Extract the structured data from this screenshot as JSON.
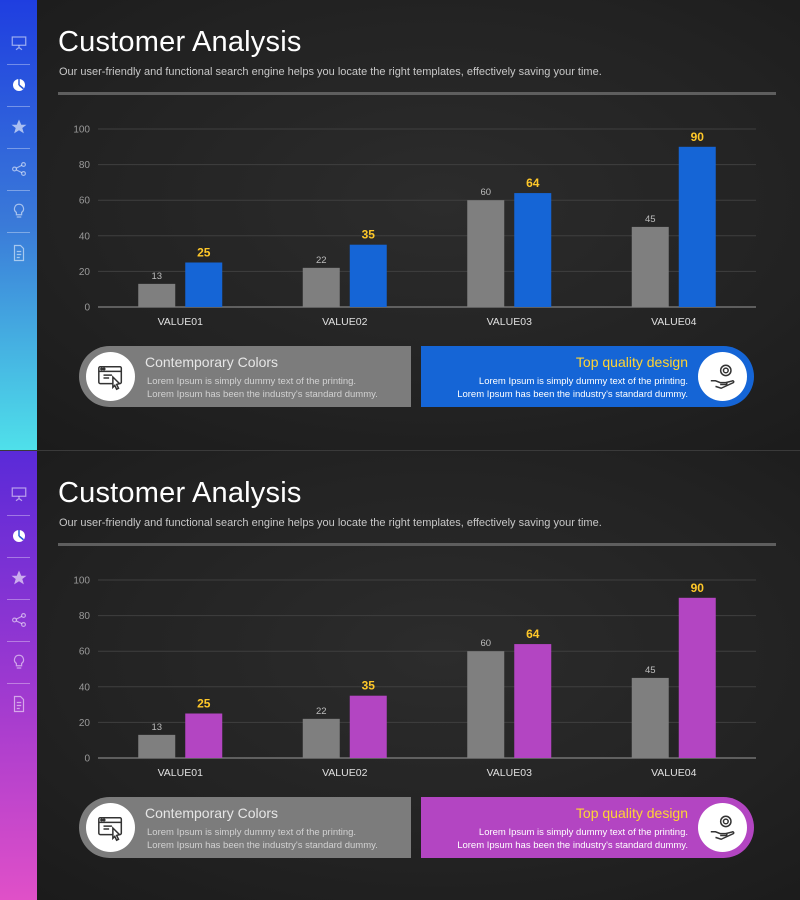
{
  "slides": [
    {
      "title": "Customer Analysis",
      "subtitle": "Our user-friendly and functional search engine helps you locate the right templates, effectively saving your time.",
      "accent": "#1565d6",
      "sidebar_icons": [
        "presentation-icon",
        "pie-chart-icon",
        "star-icon",
        "share-icon",
        "lightbulb-icon",
        "document-icon"
      ],
      "cards": [
        {
          "title": "Contemporary Colors",
          "line1": "Lorem Ipsum is simply dummy text of the printing.",
          "line2": "Lorem Ipsum has been the industry's standard dummy.",
          "icon": "browser-click-icon"
        },
        {
          "title": "Top quality design",
          "line1": "Lorem Ipsum is simply dummy text of the printing.",
          "line2": "Lorem Ipsum has been the industry's standard dummy.",
          "icon": "hand-coin-icon"
        }
      ]
    },
    {
      "title": "Customer Analysis",
      "subtitle": "Our user-friendly and functional search engine helps you locate the right templates, effectively saving your time.",
      "accent": "#b345c2",
      "sidebar_icons": [
        "presentation-icon",
        "pie-chart-icon",
        "star-icon",
        "share-icon",
        "lightbulb-icon",
        "document-icon"
      ],
      "cards": [
        {
          "title": "Contemporary Colors",
          "line1": "Lorem Ipsum is simply dummy text of the printing.",
          "line2": "Lorem Ipsum has been the industry's standard dummy.",
          "icon": "browser-click-icon"
        },
        {
          "title": "Top quality design",
          "line1": "Lorem Ipsum is simply dummy text of the printing.",
          "line2": "Lorem Ipsum has been the industry's standard dummy.",
          "icon": "hand-coin-icon"
        }
      ]
    }
  ],
  "chart_data": [
    {
      "type": "bar",
      "categories": [
        "VALUE01",
        "VALUE02",
        "VALUE03",
        "VALUE04"
      ],
      "series": [
        {
          "values": [
            13,
            22,
            60,
            45
          ],
          "color": "#7f7f7f"
        },
        {
          "values": [
            25,
            35,
            64,
            90
          ],
          "color": "#1565d6"
        }
      ],
      "ylim": [
        0,
        100
      ],
      "yticks": [
        0,
        20,
        40,
        60,
        80,
        100
      ],
      "grid": true,
      "data_labels": true,
      "highlight_label_color": "#ffc829"
    },
    {
      "type": "bar",
      "categories": [
        "VALUE01",
        "VALUE02",
        "VALUE03",
        "VALUE04"
      ],
      "series": [
        {
          "values": [
            13,
            22,
            60,
            45
          ],
          "color": "#7f7f7f"
        },
        {
          "values": [
            25,
            35,
            64,
            90
          ],
          "color": "#b345c2"
        }
      ],
      "ylim": [
        0,
        100
      ],
      "yticks": [
        0,
        20,
        40,
        60,
        80,
        100
      ],
      "grid": true,
      "data_labels": true,
      "highlight_label_color": "#ffc829"
    }
  ]
}
